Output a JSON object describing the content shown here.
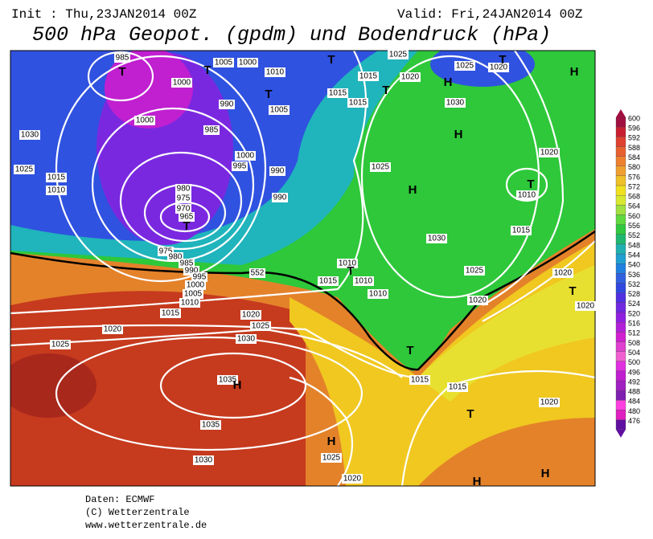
{
  "header": {
    "init": "Init : Thu,23JAN2014 00Z",
    "valid": "Valid: Fri,24JAN2014 00Z",
    "title": "500 hPa Geopot. (gpdm) und Bodendruck (hPa)"
  },
  "map": {
    "labels": [
      "985",
      "T",
      "1005",
      "1000",
      "T",
      "1010",
      "T",
      "1025",
      "1015",
      "1020",
      "H",
      "1025",
      "1020",
      "T",
      "H",
      "1000",
      "T",
      "1015",
      "1015",
      "T",
      "1030",
      "990",
      "1005",
      "1000",
      "1030",
      "985",
      "H",
      "1000",
      "995",
      "990",
      "1025",
      "1020",
      "1025",
      "1015",
      "1010",
      "980",
      "975",
      "970",
      "965",
      "T",
      "990",
      "H",
      "T",
      "1010",
      "1030",
      "1015",
      "975",
      "980",
      "985",
      "990",
      "995",
      "1000",
      "1005",
      "1010",
      "1015",
      "552",
      "1010",
      "T",
      "1025",
      "1020",
      "1015",
      "1010",
      "1010",
      "1020",
      "T",
      "1020",
      "1020",
      "1025",
      "1020",
      "1030",
      "1025",
      "T",
      "1035",
      "H",
      "1015",
      "1015",
      "1020",
      "T",
      "1035",
      "H",
      "1025",
      "1030",
      "1020",
      "H",
      "H"
    ]
  },
  "colorbar": {
    "labels": [
      600,
      596,
      592,
      588,
      584,
      580,
      576,
      572,
      568,
      564,
      560,
      556,
      552,
      548,
      544,
      540,
      536,
      532,
      528,
      524,
      520,
      516,
      512,
      508,
      504,
      500,
      496,
      492,
      488,
      484,
      480,
      476
    ]
  },
  "footer": {
    "source": "Daten: ECMWF",
    "copyright": "(C) Wetterzentrale",
    "url": "www.wetterzentrale.de"
  }
}
